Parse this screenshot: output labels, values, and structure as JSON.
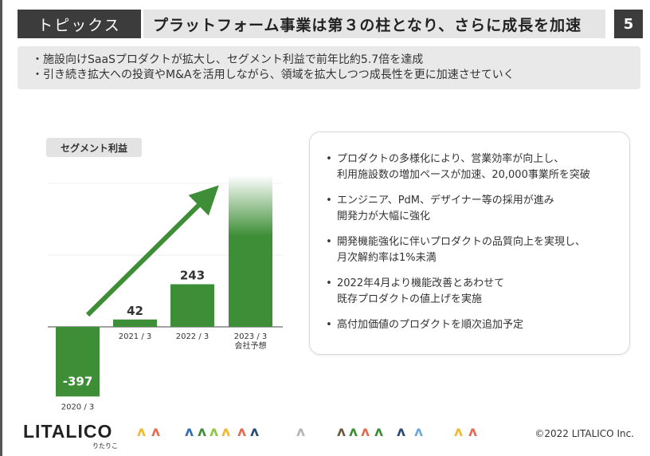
{
  "header": {
    "tag": "トピックス",
    "title": "プラットフォーム事業は第３の柱となり、さらに成長を加速",
    "page_number": "5"
  },
  "summary": {
    "lines": [
      "・施設向けSaaSプロダクトが拡大し、セグメント利益で前年比約5.7倍を達成",
      "・引き続き拡大への投資やM&Aを活用しながら、領域を拡大しつつ成長性を更に加速させていく"
    ]
  },
  "chart_data": {
    "type": "bar",
    "title": "セグメント利益",
    "categories": [
      "2020 / 3",
      "2021 / 3",
      "2022 / 3",
      "2023 / 3\n会社予想"
    ],
    "values": [
      -397,
      42,
      243,
      null
    ],
    "data_labels": [
      "-397",
      "42",
      "243",
      ""
    ],
    "forecast_category": "2023 / 3\n会社予想",
    "bar_color": "#3e8e37",
    "forecast_style": "gradient fading to white at top",
    "trend_arrow": true,
    "grid": false
  },
  "bullets": [
    "プロダクトの多様化により、営業効率が向上し、\n利用施設数の増加ペースが加速、20,000事業所を突破",
    "エンジニア、PdM、デザイナー等の採用が進み\n開発力が大幅に強化",
    "開発機能強化に伴いプロダクトの品質向上を実現し、\n月次解約率は1%未満",
    "2022年4月より機能改善とあわせて\n既存プロダクトの値上げを実施",
    "高付加価値のプロダクトを順次追加予定"
  ],
  "bullet_marker": "•",
  "footer": {
    "logo": "LITALICO",
    "logo_sub": "りたりこ",
    "people_icon": "person-chevron-icon",
    "people_glyph": "ʌ",
    "people_colors": [
      "#f2b82e",
      "#e46b4f",
      "#2f6fb3",
      "#3e8e37",
      "#8dc63f",
      "#f2b82e",
      "#e46b4f",
      "#2a4d6e",
      "#b5b5b5",
      "#6b5a40",
      "#3e8e37",
      "#e46b4f",
      "#3e8e37",
      "#2a4d6e",
      "#6fa8dc",
      "#f2b82e",
      "#e46b4f"
    ],
    "copyright": "©2022 LITALICO Inc."
  }
}
